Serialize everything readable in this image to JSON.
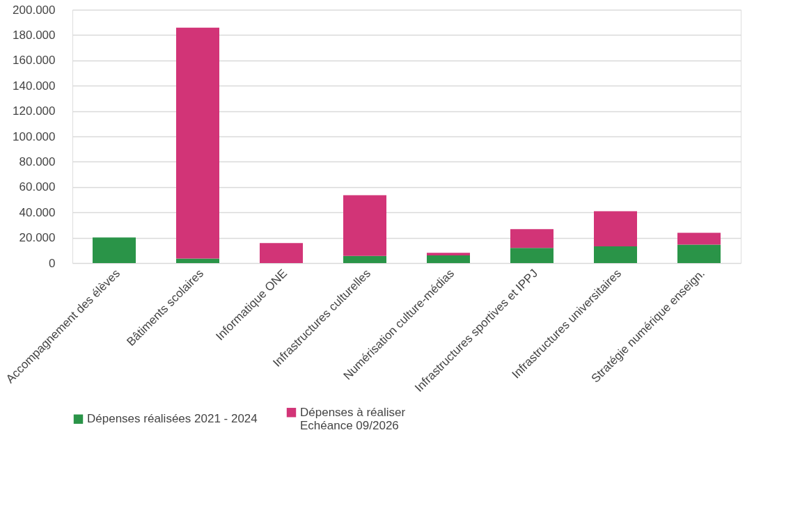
{
  "chart_data": {
    "type": "bar",
    "stacked": true,
    "categories": [
      "Accompagnement des élèves",
      "Bâtiments scolaires",
      "Informatique ONE",
      "Infrastructures culturelles",
      "Numérisation culture-médias",
      "Infrastructures sportives et IPPJ",
      "Infrastructures universitaires",
      "Stratégie numérique enseign."
    ],
    "series": [
      {
        "name": "Dépenses réalisées 2021 - 2024",
        "color": "#2a9448",
        "values": [
          20200,
          3600,
          0,
          5700,
          6100,
          12000,
          13200,
          14600
        ]
      },
      {
        "name": "Dépenses à réaliser\nEchéance 09/2026",
        "color": "#d23477",
        "values": [
          0,
          182300,
          15800,
          47900,
          2000,
          14800,
          27800,
          9300
        ]
      }
    ],
    "ylim": [
      0,
      200000
    ],
    "yticks": [
      {
        "value": 0,
        "label": "0"
      },
      {
        "value": 20000,
        "label": "20.000"
      },
      {
        "value": 40000,
        "label": "40.000"
      },
      {
        "value": 60000,
        "label": "60.000"
      },
      {
        "value": 80000,
        "label": "80.000"
      },
      {
        "value": 100000,
        "label": "100.000"
      },
      {
        "value": 120000,
        "label": "120.000"
      },
      {
        "value": 140000,
        "label": "140.000"
      },
      {
        "value": 160000,
        "label": "160.000"
      },
      {
        "value": 180000,
        "label": "180.000"
      },
      {
        "value": 200000,
        "label": "200.000"
      }
    ],
    "grid": "y",
    "legend": "bottom"
  }
}
